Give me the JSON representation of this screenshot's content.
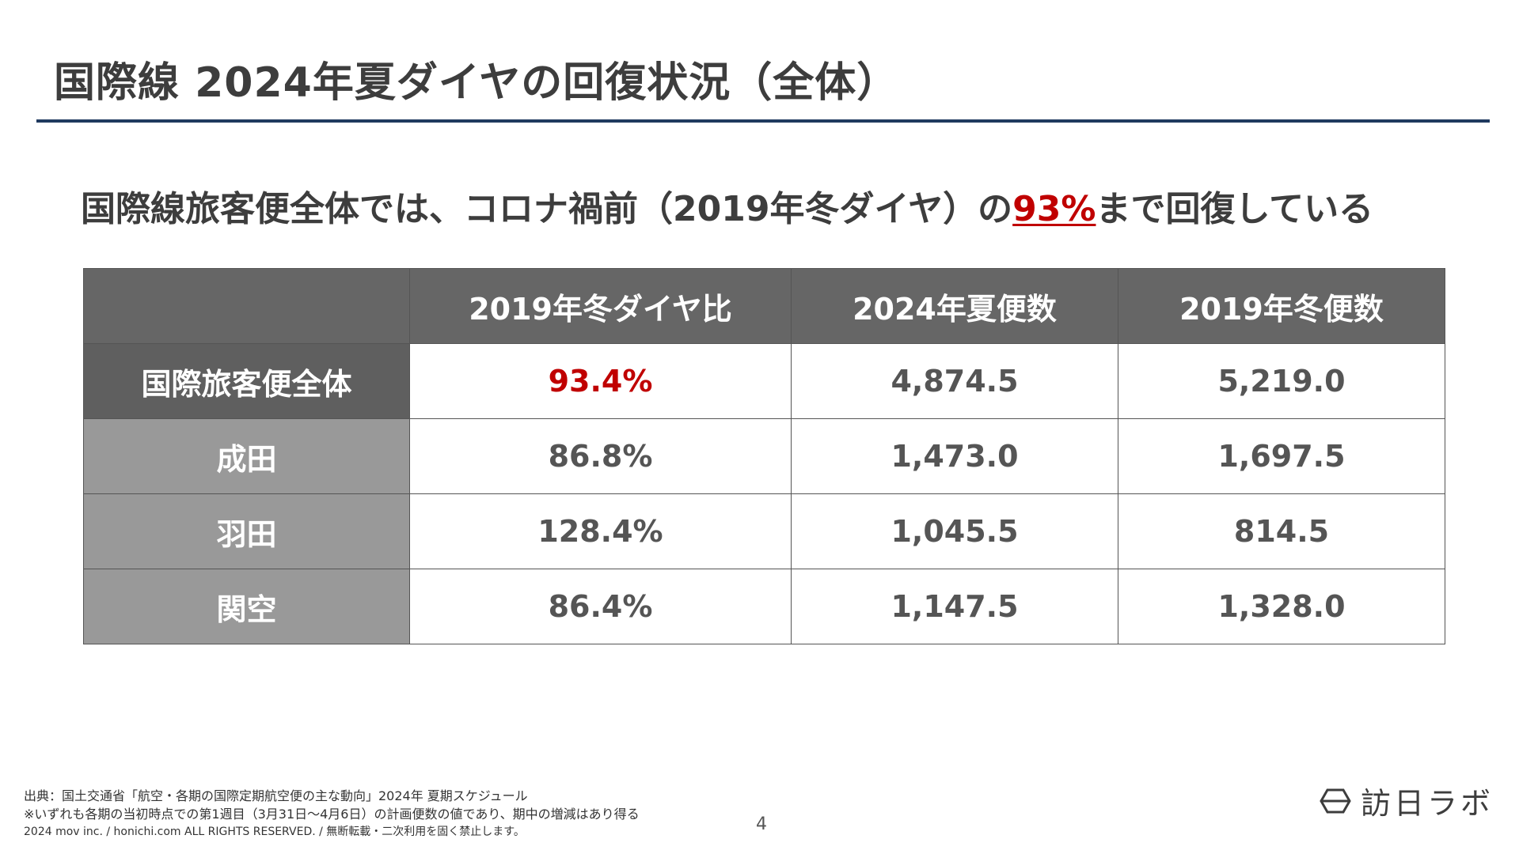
{
  "title": "国際線 2024年夏ダイヤの回復状況（全体）",
  "headline": {
    "before": "国際線旅客便全体では、コロナ禍前（2019年冬ダイヤ）の",
    "highlight": "93%",
    "after": "まで回復している"
  },
  "table": {
    "headers": [
      "",
      "2019年冬ダイヤ比",
      "2024年夏便数",
      "2019年冬便数"
    ],
    "rows": [
      {
        "label": "国際旅客便全体",
        "ratio": "93.4%",
        "summer2024": "4,874.5",
        "winter2019": "5,219.0"
      },
      {
        "label": "成田",
        "ratio": "86.8%",
        "summer2024": "1,473.0",
        "winter2019": "1,697.5"
      },
      {
        "label": "羽田",
        "ratio": "128.4%",
        "summer2024": "1,045.5",
        "winter2019": "814.5"
      },
      {
        "label": "関空",
        "ratio": "86.4%",
        "summer2024": "1,147.5",
        "winter2019": "1,328.0"
      }
    ]
  },
  "footer": {
    "source": "出典：国土交通省「航空・各期の国際定期航空便の主な動向」2024年 夏期スケジュール",
    "note": "※いずれも各期の当初時点での第1週目（3月31日〜4月6日）の計画便数の値であり、期中の増減はあり得る",
    "copyright": "2024 mov inc. / honichi.com ALL RIGHTS RESERVED. / 無断転載・二次利用を固く禁止します。"
  },
  "page_number": "4",
  "logo": {
    "text": "訪日ラボ",
    "icon": "logo-mark-icon"
  },
  "colors": {
    "accent_red": "#c00000",
    "rule": "#1f3a5f",
    "header_gray": "#666666",
    "row_gray": "#999999"
  }
}
